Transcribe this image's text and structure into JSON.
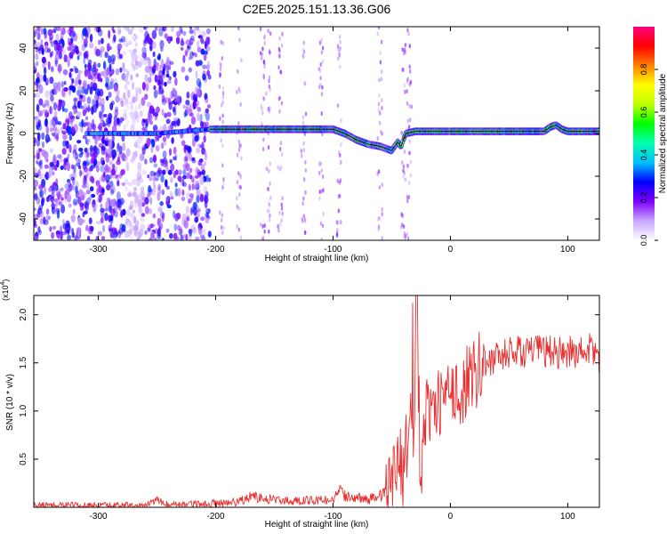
{
  "figure": {
    "title": "C2E5.2025.151.13.36.G06"
  },
  "colors": {
    "spectrogram_background": "#ffffff",
    "track_color": "#000000",
    "snr_line": "#e83030",
    "noise_purple": "#7a28e8"
  },
  "colorbar": {
    "label": "Normalized spectral amplitude",
    "ticks": [
      "0.0",
      "0.2",
      "0.4",
      "0.6",
      "0.8"
    ],
    "tick_values": [
      0.0,
      0.2,
      0.4,
      0.6,
      0.8
    ],
    "range": [
      0,
      1
    ],
    "colormap": [
      "#ffffff",
      "#c8a8ff",
      "#8000ff",
      "#0000ff",
      "#00c0ff",
      "#00ffb0",
      "#00ff00",
      "#c0ff00",
      "#ffff00",
      "#ff8000",
      "#ff0000",
      "#ff0080"
    ]
  },
  "chart_data": [
    {
      "type": "heatmap",
      "title": "C2E5.2025.151.13.36.G06",
      "xlabel": "Height of straight line (km)",
      "ylabel": "Frequency (Hz)",
      "xlim": [
        -355,
        127
      ],
      "ylim": [
        -50,
        50
      ],
      "xticks": [
        -300,
        -200,
        -100,
        0,
        100
      ],
      "yticks": [
        -40,
        -20,
        0,
        20,
        40
      ],
      "xtick_labels": [
        "-300",
        "-200",
        "-100",
        "0",
        "100"
      ],
      "ytick_labels": [
        "-40",
        "-20",
        "0",
        "20",
        "40"
      ],
      "series": [
        {
          "x": [
            -355,
            -300,
            -250,
            -205,
            -180,
            -150,
            -120,
            -100,
            -90,
            -80,
            -70,
            -60,
            -55,
            -50,
            -45,
            -42,
            -40,
            -38,
            -30,
            0,
            30,
            60,
            80,
            85,
            90,
            95,
            100,
            127
          ],
          "y": [
            0,
            0,
            0,
            2,
            2,
            2,
            2,
            2,
            0,
            -3,
            -5,
            -6,
            -7,
            -8,
            -4,
            -6,
            -3,
            0,
            1,
            1,
            1,
            1,
            1,
            3,
            4,
            2,
            1,
            1
          ]
        }
      ],
      "grid": false
    },
    {
      "type": "line",
      "xlabel": "Height of straight line (km)",
      "ylabel": "SNR (10 * v/v)",
      "y_multiplier": "(x10",
      "y_multiplier_exp": "4",
      "xlim": [
        -355,
        127
      ],
      "ylim": [
        0,
        2.2
      ],
      "xticks": [
        -300,
        -200,
        -100,
        0,
        100
      ],
      "yticks": [
        0.5,
        1.0,
        1.5,
        2.0
      ],
      "xtick_labels": [
        "-300",
        "-200",
        "-100",
        "0",
        "100"
      ],
      "ytick_labels": [
        "0.5",
        "1.0",
        "1.5",
        "2.0"
      ],
      "series": [
        {
          "x": [
            -355,
            -300,
            -260,
            -250,
            -240,
            -220,
            -200,
            -180,
            -170,
            -160,
            -150,
            -140,
            -120,
            -100,
            -95,
            -90,
            -80,
            -70,
            -60,
            -50,
            -45,
            -40,
            -35,
            -30,
            -28,
            -26,
            -25,
            -22,
            -20,
            -15,
            -10,
            -5,
            0,
            10,
            20,
            30,
            40,
            50,
            60,
            70,
            80,
            90,
            100,
            110,
            120,
            127
          ],
          "y": [
            0.02,
            0.02,
            0.02,
            0.07,
            0.02,
            0.03,
            0.04,
            0.06,
            0.12,
            0.09,
            0.08,
            0.07,
            0.07,
            0.08,
            0.17,
            0.12,
            0.1,
            0.08,
            0.12,
            0.22,
            0.5,
            0.35,
            0.95,
            1.6,
            2.2,
            0.5,
            0.1,
            0.9,
            1.05,
            1.0,
            1.08,
            1.1,
            1.15,
            1.22,
            1.4,
            1.5,
            1.55,
            1.6,
            1.62,
            1.62,
            1.62,
            1.6,
            1.62,
            1.6,
            1.65,
            1.55
          ]
        }
      ],
      "grid": false
    }
  ]
}
